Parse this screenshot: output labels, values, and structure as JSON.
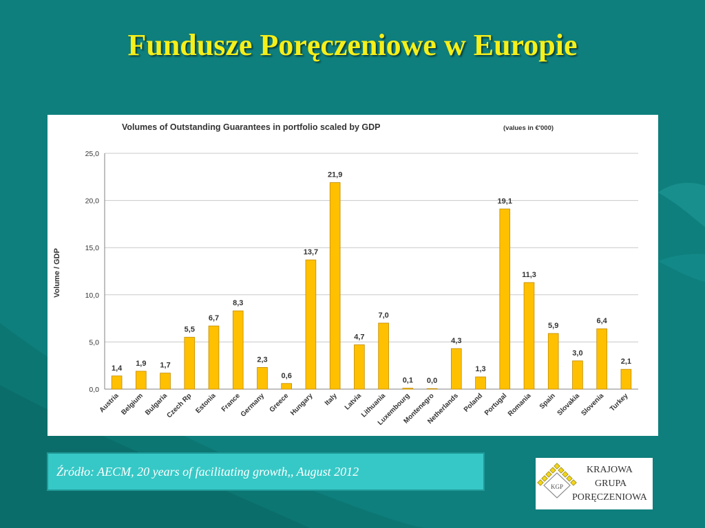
{
  "slide": {
    "title": "Fundusze Poręczeniowe w Europie",
    "source": "Źródło: AECM, 20 years of  facilitating growth,, August 2012"
  },
  "logo": {
    "monogram": "KGP",
    "line1": "KRAJOWA",
    "line2": "GRUPA",
    "line3": "PORĘCZENIOWA"
  },
  "colors": {
    "background": "#0e7f7d",
    "title": "#f5ef1a",
    "bar_fill": "#ffc000",
    "bar_stroke": "#c08a00",
    "source_box": "#36c8c6"
  },
  "chart_data": {
    "type": "bar",
    "title": "Volumes of Outstanding Guarantees in portfolio scaled by GDP",
    "subtitle": "(values in €'000)",
    "ylabel": "Volume / GDP",
    "ylim": [
      0,
      25
    ],
    "yticks": [
      "0,0",
      "5,0",
      "10,0",
      "15,0",
      "20,0",
      "25,0"
    ],
    "grid": true,
    "categories": [
      "Austria",
      "Belgium",
      "Bulgaria",
      "Czech Rp",
      "Estonia",
      "France",
      "Germany",
      "Greece",
      "Hungary",
      "Italy",
      "Latvia",
      "Lithuania",
      "Luxembourg",
      "Montenegro",
      "Netherlands",
      "Poland",
      "Portugal",
      "Romania",
      "Spain",
      "Slovakia",
      "Slovenia",
      "Turkey"
    ],
    "values": [
      1.4,
      1.9,
      1.7,
      5.5,
      6.7,
      8.3,
      2.3,
      0.6,
      13.7,
      21.9,
      4.7,
      7.0,
      0.1,
      0.0,
      4.3,
      1.3,
      19.1,
      11.3,
      5.9,
      3.0,
      6.4,
      2.1
    ],
    "labels": [
      "1,4",
      "1,9",
      "1,7",
      "5,5",
      "6,7",
      "8,3",
      "2,3",
      "0,6",
      "13,7",
      "21,9",
      "4,7",
      "7,0",
      "0,1",
      "0,0",
      "4,3",
      "1,3",
      "19,1",
      "11,3",
      "5,9",
      "3,0",
      "6,4",
      "2,1"
    ]
  }
}
